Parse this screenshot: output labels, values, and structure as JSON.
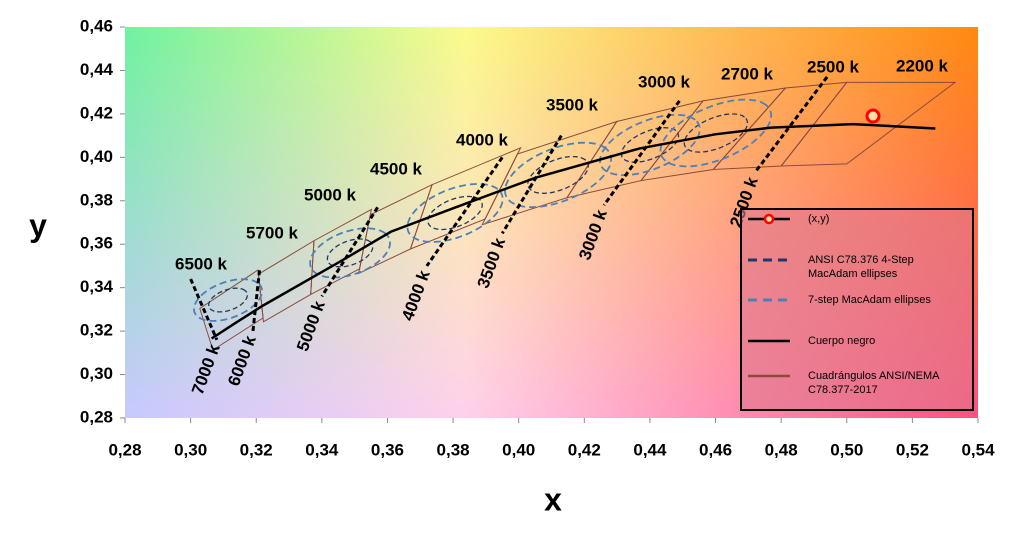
{
  "chart_data": {
    "type": "scatter",
    "x_label": "x",
    "y_label": "y",
    "xlim": [
      0.28,
      0.54
    ],
    "xticks": [
      {
        "value": 0.28,
        "label": "0,28"
      },
      {
        "value": 0.3,
        "label": "0,30"
      },
      {
        "value": 0.32,
        "label": "0,32"
      },
      {
        "value": 0.34,
        "label": "0,34"
      },
      {
        "value": 0.36,
        "label": "0,36"
      },
      {
        "value": 0.38,
        "label": "0,38"
      },
      {
        "value": 0.4,
        "label": "0,40"
      },
      {
        "value": 0.42,
        "label": "0,42"
      },
      {
        "value": 0.44,
        "label": "0,44"
      },
      {
        "value": 0.46,
        "label": "0,46"
      },
      {
        "value": 0.48,
        "label": "0,48"
      },
      {
        "value": 0.5,
        "label": "0,50"
      },
      {
        "value": 0.52,
        "label": "0,52"
      },
      {
        "value": 0.54,
        "label": "0,54"
      }
    ],
    "ylim": [
      0.28,
      0.46
    ],
    "yticks": [
      {
        "value": 0.28,
        "label": "0,28"
      },
      {
        "value": 0.3,
        "label": "0,30"
      },
      {
        "value": 0.32,
        "label": "0,32"
      },
      {
        "value": 0.34,
        "label": "0,34"
      },
      {
        "value": 0.36,
        "label": "0,36"
      },
      {
        "value": 0.38,
        "label": "0,38"
      },
      {
        "value": 0.4,
        "label": "0,40"
      },
      {
        "value": 0.42,
        "label": "0,42"
      },
      {
        "value": 0.44,
        "label": "0,44"
      },
      {
        "value": 0.46,
        "label": "0,46"
      }
    ],
    "series": [
      {
        "name": "(x,y)",
        "color": "#ff0000",
        "x": [
          0.508
        ],
        "y": [
          0.419
        ]
      },
      {
        "name": "ANSI C78.376  4-Step MacAdam ellipses",
        "color": "#1f3864",
        "ellipses": {
          "cx": [
            0.3114,
            0.3486,
            0.3806,
            0.412,
            0.44,
            0.4601
          ],
          "cy": [
            0.3343,
            0.356,
            0.3744,
            0.3919,
            0.4057,
            0.4112
          ],
          "a": [
            0.0068,
            0.008,
            0.0097,
            0.0108,
            0.0103,
            0.0114
          ],
          "b": [
            0.0043,
            0.005,
            0.0057,
            0.0063,
            0.0057,
            0.0063
          ],
          "angle": [
            40,
            40,
            40,
            40,
            40,
            40
          ]
        }
      },
      {
        "name": "7-step MacAdam ellipses",
        "color": "#4f7fb8",
        "ellipses": {
          "cx": [
            0.3114,
            0.3486,
            0.3806,
            0.412,
            0.44,
            0.4601
          ],
          "cy": [
            0.3343,
            0.356,
            0.3744,
            0.3919,
            0.4057,
            0.4112
          ],
          "a": [
            0.012,
            0.014,
            0.017,
            0.019,
            0.018,
            0.02
          ],
          "b": [
            0.0075,
            0.009,
            0.01,
            0.011,
            0.01,
            0.011
          ],
          "angle": [
            40,
            40,
            40,
            40,
            40,
            40
          ]
        }
      },
      {
        "name": "Cuerpo negro",
        "color": "#000000",
        "x": [
          0.3064,
          0.3135,
          0.3221,
          0.3451,
          0.3611,
          0.3805,
          0.4053,
          0.4369,
          0.4599,
          0.477,
          0.5018,
          0.527
        ],
        "y": [
          0.3166,
          0.3236,
          0.3318,
          0.3516,
          0.3658,
          0.3768,
          0.3907,
          0.4041,
          0.4106,
          0.4137,
          0.4153,
          0.4133
        ]
      },
      {
        "name": "Cuadrángulos ANSI/NEMA C78.377-2017",
        "color": "#8b4a3a",
        "quads": [
          {
            "x": [
              0.3205,
              0.3028,
              0.3068,
              0.3221
            ],
            "y": [
              0.3481,
              0.3304,
              0.3113,
              0.3261
            ]
          },
          {
            "x": [
              0.3376,
              0.3207,
              0.3222,
              0.3366
            ],
            "y": [
              0.3616,
              0.3462,
              0.3243,
              0.3369
            ]
          },
          {
            "x": [
              0.3551,
              0.3376,
              0.3366,
              0.3515
            ],
            "y": [
              0.376,
              0.3616,
              0.3369,
              0.3487
            ]
          },
          {
            "x": [
              0.3736,
              0.3548,
              0.3512,
              0.367
            ],
            "y": [
              0.3874,
              0.3736,
              0.3465,
              0.3578
            ]
          },
          {
            "x": [
              0.4006,
              0.3736,
              0.367,
              0.3898
            ],
            "y": [
              0.4044,
              0.3874,
              0.3578,
              0.3716
            ]
          },
          {
            "x": [
              0.4299,
              0.3996,
              0.3889,
              0.4147
            ],
            "y": [
              0.4165,
              0.4015,
              0.369,
              0.3814
            ]
          },
          {
            "x": [
              0.4562,
              0.4299,
              0.4147,
              0.4373
            ],
            "y": [
              0.426,
              0.4165,
              0.3814,
              0.3893
            ]
          },
          {
            "x": [
              0.4813,
              0.4562,
              0.4373,
              0.4593
            ],
            "y": [
              0.4319,
              0.426,
              0.3893,
              0.3944
            ]
          },
          {
            "x": [
              0.5,
              0.4813,
              0.4593,
              0.48
            ],
            "y": [
              0.4345,
              0.4319,
              0.3944,
              0.396
            ]
          },
          {
            "x": [
              0.533,
              0.5,
              0.48,
              0.5
            ],
            "y": [
              0.4345,
              0.4345,
              0.396,
              0.397
            ]
          }
        ]
      }
    ],
    "isotherms": [
      {
        "label": "7000 k",
        "x": [
          0.3,
          0.308
        ],
        "y": [
          0.344,
          0.316
        ]
      },
      {
        "label": "6000 k",
        "x": [
          0.321,
          0.319
        ],
        "y": [
          0.348,
          0.32
        ]
      },
      {
        "label": "5000 k",
        "x": [
          0.357,
          0.34
        ],
        "y": [
          0.377,
          0.336
        ]
      },
      {
        "label": "4000 k",
        "x": [
          0.395,
          0.372
        ],
        "y": [
          0.4,
          0.35
        ]
      },
      {
        "label": "3500 k",
        "x": [
          0.413,
          0.395
        ],
        "y": [
          0.41,
          0.365
        ]
      },
      {
        "label": "3000 k",
        "x": [
          0.449,
          0.426
        ],
        "y": [
          0.426,
          0.378
        ]
      },
      {
        "label": "2500 k",
        "x": [
          0.494,
          0.472
        ],
        "y": [
          0.437,
          0.393
        ]
      }
    ],
    "cct_labels": [
      "6500 k",
      "5700 k",
      "5000 k",
      "4500 k",
      "4000 k",
      "3500 k",
      "3000 k",
      "2700 k",
      "2500 k",
      "2200 k"
    ]
  }
}
